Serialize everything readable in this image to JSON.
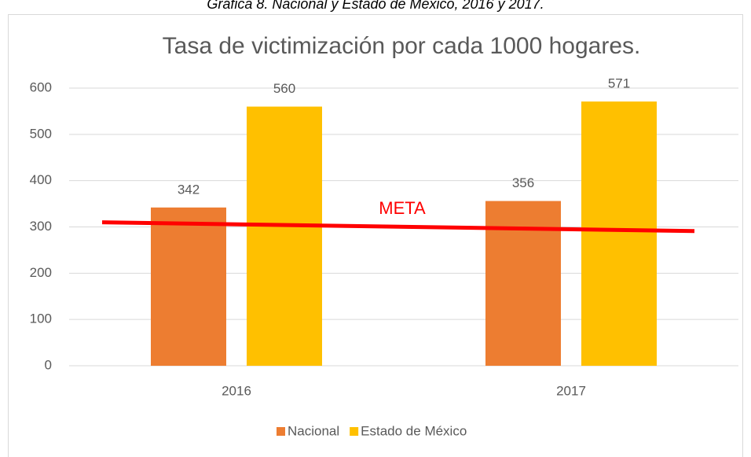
{
  "caption": "Gráfica 8. Nacional y Estado de México, 2016 y 2017.",
  "chart_data": {
    "type": "bar",
    "title": "Tasa de victimización por cada 1000 hogares.",
    "categories": [
      "2016",
      "2017"
    ],
    "series": [
      {
        "name": "Nacional",
        "color": "#ed7d31",
        "values": [
          342,
          356
        ]
      },
      {
        "name": "Estado de México",
        "color": "#ffc000",
        "values": [
          560,
          571
        ]
      }
    ],
    "ylim": [
      0,
      600
    ],
    "yticks": [
      0,
      100,
      200,
      300,
      400,
      500,
      600
    ],
    "grid": true,
    "legend": "bottom",
    "meta": {
      "label": "META",
      "color": "#ff0000",
      "values": [
        310,
        291
      ]
    }
  }
}
